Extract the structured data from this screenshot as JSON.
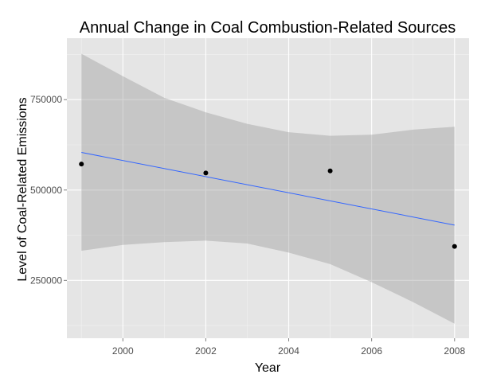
{
  "chart_data": {
    "type": "scatter",
    "title": "Annual Change in Coal Combustion-Related Sources",
    "xlabel": "Year",
    "ylabel": "Level of Coal-Related Emissions",
    "xlim": [
      1998.65,
      2008.35
    ],
    "ylim": [
      90000,
      920000
    ],
    "x_ticks": [
      2000,
      2002,
      2004,
      2006,
      2008
    ],
    "x_tick_labels": [
      "2000",
      "2002",
      "2004",
      "2006",
      "2008"
    ],
    "y_ticks": [
      250000,
      500000,
      750000
    ],
    "y_tick_labels": [
      "250000",
      "500000",
      "750000"
    ],
    "grid": true,
    "points": {
      "x": [
        1999,
        2002,
        2005,
        2008
      ],
      "y": [
        572000,
        547000,
        553000,
        344000
      ]
    },
    "trend_line": {
      "method": "linear",
      "x": [
        1999,
        2008
      ],
      "y": [
        604000,
        403000
      ]
    },
    "confidence_band": {
      "x": [
        1999,
        2000,
        2001,
        2002,
        2003,
        2004,
        2005,
        2006,
        2007,
        2008
      ],
      "upper": [
        877000,
        815000,
        755000,
        715000,
        683000,
        660000,
        650000,
        653000,
        667000,
        675000
      ],
      "lower": [
        332000,
        348000,
        356000,
        360000,
        352000,
        327000,
        295000,
        245000,
        190000,
        130000
      ]
    },
    "colors": {
      "panel_background": "#e5e5e5",
      "grid_major": "#ffffff",
      "grid_minor": "#f2f2f2",
      "ribbon": "#999999",
      "line": "#3366ff",
      "points": "#000000",
      "tick_label": "#4d4d4d"
    }
  }
}
